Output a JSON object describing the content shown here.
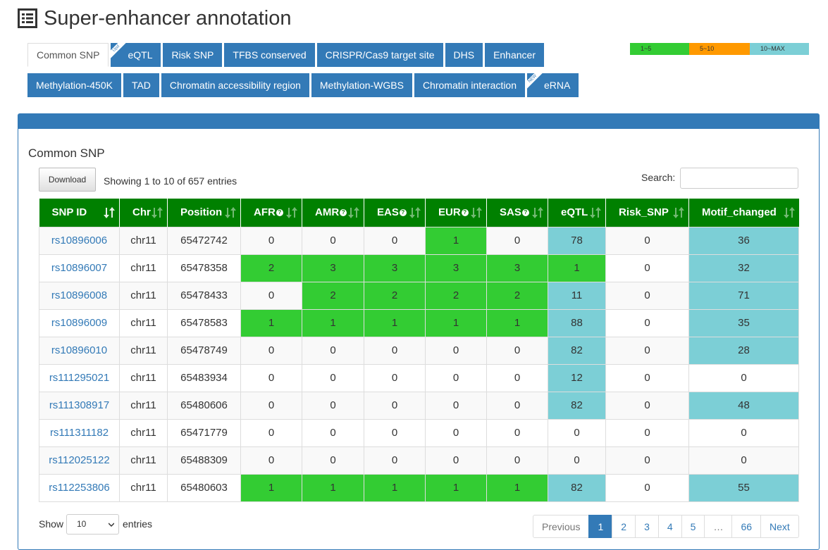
{
  "page": {
    "title": "Super-enhancer annotation"
  },
  "legend": [
    {
      "label": "1~5",
      "color": "#33cc33"
    },
    {
      "label": "5~10",
      "color": "#ff9900"
    },
    {
      "label": "10~MAX",
      "color": "#7ccfd6"
    }
  ],
  "tabs_row1": [
    {
      "label": "Common SNP",
      "active": true
    },
    {
      "label": "eQTL",
      "ribbon": "Upd"
    },
    {
      "label": "Risk SNP"
    },
    {
      "label": "TFBS conserved"
    },
    {
      "label": "CRISPR/Cas9 target site"
    },
    {
      "label": "DHS"
    },
    {
      "label": "Enhancer"
    }
  ],
  "tabs_row2": [
    {
      "label": "Methylation-450K"
    },
    {
      "label": "TAD"
    },
    {
      "label": "Chromatin accessibility region"
    },
    {
      "label": "Methylation-WGBS"
    },
    {
      "label": "Chromatin interaction"
    },
    {
      "label": "eRNA",
      "ribbon": "NEW"
    }
  ],
  "section": {
    "title": "Common SNP",
    "download_label": "Download",
    "info": "Showing 1 to 10 of 657 entries",
    "search_label": "Search:",
    "search_value": ""
  },
  "table": {
    "headers": [
      "SNP ID",
      "Chr",
      "Position",
      "AFR",
      "AMR",
      "EAS",
      "EUR",
      "SAS",
      "eQTL",
      "Risk_SNP",
      "Motif_changed"
    ],
    "rows": [
      [
        "rs10896006",
        "chr11",
        "65472742",
        "0",
        "0",
        "0",
        "1",
        "0",
        "78",
        "0",
        "36"
      ],
      [
        "rs10896007",
        "chr11",
        "65478358",
        "2",
        "3",
        "3",
        "3",
        "3",
        "1",
        "0",
        "32"
      ],
      [
        "rs10896008",
        "chr11",
        "65478433",
        "0",
        "2",
        "2",
        "2",
        "2",
        "11",
        "0",
        "71"
      ],
      [
        "rs10896009",
        "chr11",
        "65478583",
        "1",
        "1",
        "1",
        "1",
        "1",
        "88",
        "0",
        "35"
      ],
      [
        "rs10896010",
        "chr11",
        "65478749",
        "0",
        "0",
        "0",
        "0",
        "0",
        "82",
        "0",
        "28"
      ],
      [
        "rs111295021",
        "chr11",
        "65483934",
        "0",
        "0",
        "0",
        "0",
        "0",
        "12",
        "0",
        "0"
      ],
      [
        "rs111308917",
        "chr11",
        "65480606",
        "0",
        "0",
        "0",
        "0",
        "0",
        "82",
        "0",
        "48"
      ],
      [
        "rs111311182",
        "chr11",
        "65471779",
        "0",
        "0",
        "0",
        "0",
        "0",
        "0",
        "0",
        "0"
      ],
      [
        "rs112025122",
        "chr11",
        "65488309",
        "0",
        "0",
        "0",
        "0",
        "0",
        "0",
        "0",
        "0"
      ],
      [
        "rs112253806",
        "chr11",
        "65480603",
        "1",
        "1",
        "1",
        "1",
        "1",
        "82",
        "0",
        "55"
      ]
    ]
  },
  "footer": {
    "show_label": "Show",
    "page_length": "10",
    "entries_label": "entries",
    "pagination": {
      "previous": "Previous",
      "pages": [
        "1",
        "2",
        "3",
        "4",
        "5",
        "…",
        "66"
      ],
      "active": "1",
      "next": "Next"
    }
  }
}
